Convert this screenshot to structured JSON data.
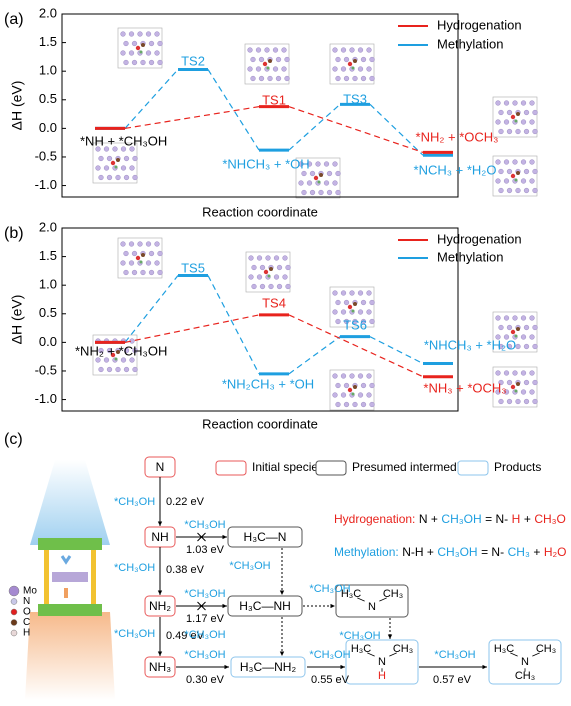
{
  "chart_data": [
    {
      "type": "energy_profile",
      "panel_label": "(a)",
      "y_label": "ΔH (eV)",
      "x_label": "Reaction coordinate",
      "categories": [
        null,
        null,
        null,
        null,
        null
      ],
      "series": [
        {
          "name": "Hydrogenation",
          "color": "#e8231d",
          "values": [
            0,
            null,
            0.38,
            null,
            -0.42
          ]
        },
        {
          "name": "Methylation",
          "color": "#1e9fe0",
          "values": [
            0,
            1.03,
            -0.38,
            0.42,
            -0.47
          ]
        }
      ],
      "ylim": [
        -1.2,
        2.0
      ],
      "yticks": [
        {
          "value": -1,
          "label": "-1.0"
        },
        -0.5,
        {
          "value": 0,
          "label": "0.0"
        },
        0.5,
        {
          "value": 1,
          "label": "1.0"
        },
        1.5,
        {
          "value": 2,
          "label": "2.0"
        }
      ],
      "legend": "upper right",
      "annotations": [
        {
          "text": "*NH + *CH₃OH",
          "color": "#000000"
        },
        {
          "text": "TS2",
          "color": "#1e9fe0"
        },
        {
          "text": "TS1",
          "color": "#e8231d"
        },
        {
          "text": "*NHCH₃ + *OH",
          "color": "#1e9fe0"
        },
        {
          "text": "TS3",
          "color": "#1e9fe0"
        },
        {
          "text": "*NH₂ + *OCH₃",
          "color": "#e8231d"
        },
        {
          "text": "*NCH₃ + *H₂O",
          "color": "#1e9fe0"
        }
      ]
    },
    {
      "type": "energy_profile",
      "panel_label": "(b)",
      "y_label": "ΔH (eV)",
      "x_label": "Reaction coordinate",
      "categories": [
        null,
        null,
        null,
        null,
        null
      ],
      "series": [
        {
          "name": "Hydrogenation",
          "color": "#e8231d",
          "values": [
            0,
            null,
            0.48,
            null,
            -0.6
          ]
        },
        {
          "name": "Methylation",
          "color": "#1e9fe0",
          "values": [
            0,
            1.17,
            -0.55,
            0.1,
            -0.37
          ]
        }
      ],
      "ylim": [
        -1.2,
        2.0
      ],
      "yticks": [
        {
          "value": -1,
          "label": "-1.0"
        },
        -0.5,
        {
          "value": 0,
          "label": "0.0"
        },
        0.5,
        {
          "value": 1,
          "label": "1.0"
        },
        1.5,
        {
          "value": 2,
          "label": "2.0"
        }
      ],
      "legend": "upper right",
      "annotations": [
        {
          "text": "*NH₂ + *CH₃OH",
          "color": "#000000"
        },
        {
          "text": "TS5",
          "color": "#1e9fe0"
        },
        {
          "text": "TS4",
          "color": "#e8231d"
        },
        {
          "text": "*NH₂CH₃ + *OH",
          "color": "#1e9fe0"
        },
        {
          "text": "TS6",
          "color": "#1e9fe0"
        },
        {
          "text": "*NHCH₃ + *H₂O",
          "color": "#1e9fe0"
        },
        {
          "text": "*NH₃ + *OCH₃",
          "color": "#e8231d"
        }
      ]
    }
  ],
  "scheme": {
    "panel_label": "(c)",
    "atoms": [
      "Mo",
      "N",
      "O",
      "C",
      "H"
    ],
    "legend": [
      "Initial species",
      "Presumed intermediates",
      "Products"
    ],
    "species": [
      {
        "parts": [
          "N"
        ]
      },
      {
        "parts": [
          "NH"
        ]
      },
      {
        "parts": [
          "NH₂"
        ]
      },
      {
        "parts": [
          "NH₃"
        ]
      },
      {
        "parts": [
          "H₃C—N"
        ]
      },
      {
        "parts": [
          "H₃C—NH"
        ]
      },
      {
        "parts": [
          "H₃C—NH₂"
        ]
      },
      {
        "parts": [
          "H₃C",
          "N",
          "CH₃"
        ]
      },
      {
        "parts": [
          "H₃C",
          "N",
          "CH₃",
          "H"
        ]
      },
      {
        "parts": [
          "H₃C",
          "N",
          "CH₃",
          "CH₃"
        ]
      }
    ],
    "steps": [
      {
        "reagent": "*CH₃OH",
        "energy": "0.22 eV"
      },
      {
        "reagent": "*CH₃OH",
        "energy": "0.38 eV"
      },
      {
        "reagent": "*CH₃OH",
        "energy": "0.49 eV"
      },
      {
        "reagent": "*CH₃OH",
        "energy": "1.03 eV"
      },
      {
        "reagent": "*CH₃OH",
        "energy": "1.17 eV"
      },
      {
        "reagent": "*CH₃OH",
        "energy": "0.30 eV"
      },
      {
        "reagent": "*CH₃OH"
      },
      {
        "reagent": "*CH₃OH"
      },
      {
        "reagent": "*CH₃OH"
      },
      {
        "reagent": "*CH₃OH"
      },
      {
        "reagent": "*CH₃OH",
        "energy": "0.55 eV"
      },
      {
        "reagent": "*CH₃OH",
        "energy": "0.57 eV"
      }
    ],
    "equations": [
      [
        {
          "text": "Hydrogenation:",
          "color": "#e8231d"
        },
        {
          "text": "N +",
          "color": "#000000"
        },
        {
          "text": "CH₃OH",
          "color": "#1e9fe0"
        },
        {
          "text": "= N-",
          "color": "#000000"
        },
        {
          "text": "H",
          "color": "#e8231d"
        },
        {
          "text": "+",
          "color": "#000000"
        },
        {
          "text": "CH₃O",
          "color": "#e8231d"
        }
      ],
      [
        {
          "text": "Methylation:",
          "color": "#1e9fe0"
        },
        {
          "text": "N-H +",
          "color": "#000000"
        },
        {
          "text": "CH₃OH",
          "color": "#1e9fe0"
        },
        {
          "text": "= N-",
          "color": "#000000"
        },
        {
          "text": "CH₃",
          "color": "#1e9fe0"
        },
        {
          "text": "+",
          "color": "#000000"
        },
        {
          "text": "H₂O",
          "color": "#e8231d"
        }
      ]
    ]
  }
}
